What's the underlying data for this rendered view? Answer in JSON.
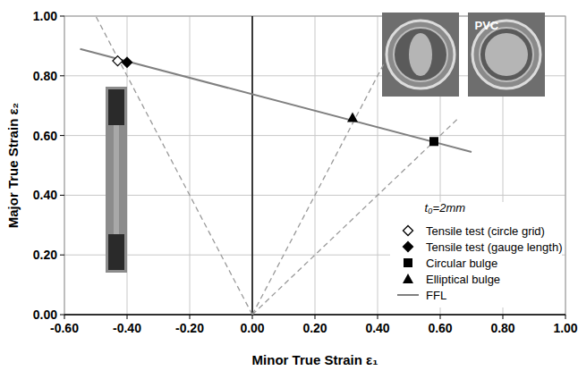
{
  "chart_data": {
    "type": "scatter",
    "x_label": "Minor True Strain ε₁",
    "y_label": "Major True Strain ε₂",
    "xlim": [
      -0.6,
      1.0
    ],
    "ylim": [
      0.0,
      1.0
    ],
    "xticks": [
      {
        "value": -0.6,
        "label": "-0.60"
      },
      {
        "value": -0.4,
        "label": "-0.40"
      },
      {
        "value": -0.2,
        "label": "-0.20"
      },
      {
        "value": 0,
        "label": "0.00"
      },
      {
        "value": 0.2,
        "label": "0.20"
      },
      {
        "value": 0.4,
        "label": "0.40"
      },
      {
        "value": 0.6,
        "label": "0.60"
      },
      {
        "value": 0.8,
        "label": "0.80"
      },
      {
        "value": 1.0,
        "label": "1.00"
      }
    ],
    "yticks": [
      {
        "value": 0,
        "label": "0.00"
      },
      {
        "value": 0.2,
        "label": "0.20"
      },
      {
        "value": 0.4,
        "label": "0.40"
      },
      {
        "value": 0.6,
        "label": "0.60"
      },
      {
        "value": 0.8,
        "label": "0.80"
      },
      {
        "value": 1.0,
        "label": "1.00"
      }
    ],
    "grid": true,
    "legend": "lower right",
    "annotations": [
      {
        "text": "t₀=2mm",
        "x": 0.55,
        "y": 0.345,
        "color": "#000000"
      },
      {
        "text": "PVC",
        "x": 0.71,
        "y": 0.955,
        "color": "#ffffff"
      }
    ],
    "series": [
      {
        "name": "Tensile test (circle grid)",
        "type": "scatter",
        "marker": "diamond-open",
        "color": "#000000",
        "x": [
          -0.43
        ],
        "values": [
          0.85
        ]
      },
      {
        "name": "Tensile test (gauge length)",
        "type": "scatter",
        "marker": "diamond",
        "color": "#000000",
        "x": [
          -0.4
        ],
        "values": [
          0.845
        ]
      },
      {
        "name": "Circular bulge",
        "type": "scatter",
        "marker": "square",
        "color": "#000000",
        "x": [
          0.58
        ],
        "values": [
          0.58
        ]
      },
      {
        "name": "Elliptical bulge",
        "type": "scatter",
        "marker": "triangle",
        "color": "#000000",
        "x": [
          0.32
        ],
        "values": [
          0.66
        ]
      },
      {
        "name": "FFL",
        "type": "line",
        "line_style": "solid",
        "color": "#808080",
        "x": [
          -0.55,
          0.7
        ],
        "values": [
          0.89,
          0.545
        ]
      },
      {
        "type": "line",
        "line_style": "dashed",
        "color": "#9a9a9a",
        "x": [
          0,
          -0.5
        ],
        "values": [
          0,
          1.0
        ]
      },
      {
        "type": "line",
        "line_style": "dashed",
        "color": "#9a9a9a",
        "x": [
          0,
          0.42
        ],
        "values": [
          0,
          0.84
        ]
      },
      {
        "type": "line",
        "line_style": "dashed",
        "color": "#9a9a9a",
        "x": [
          0,
          0.66
        ],
        "values": [
          0,
          0.66
        ]
      }
    ]
  }
}
